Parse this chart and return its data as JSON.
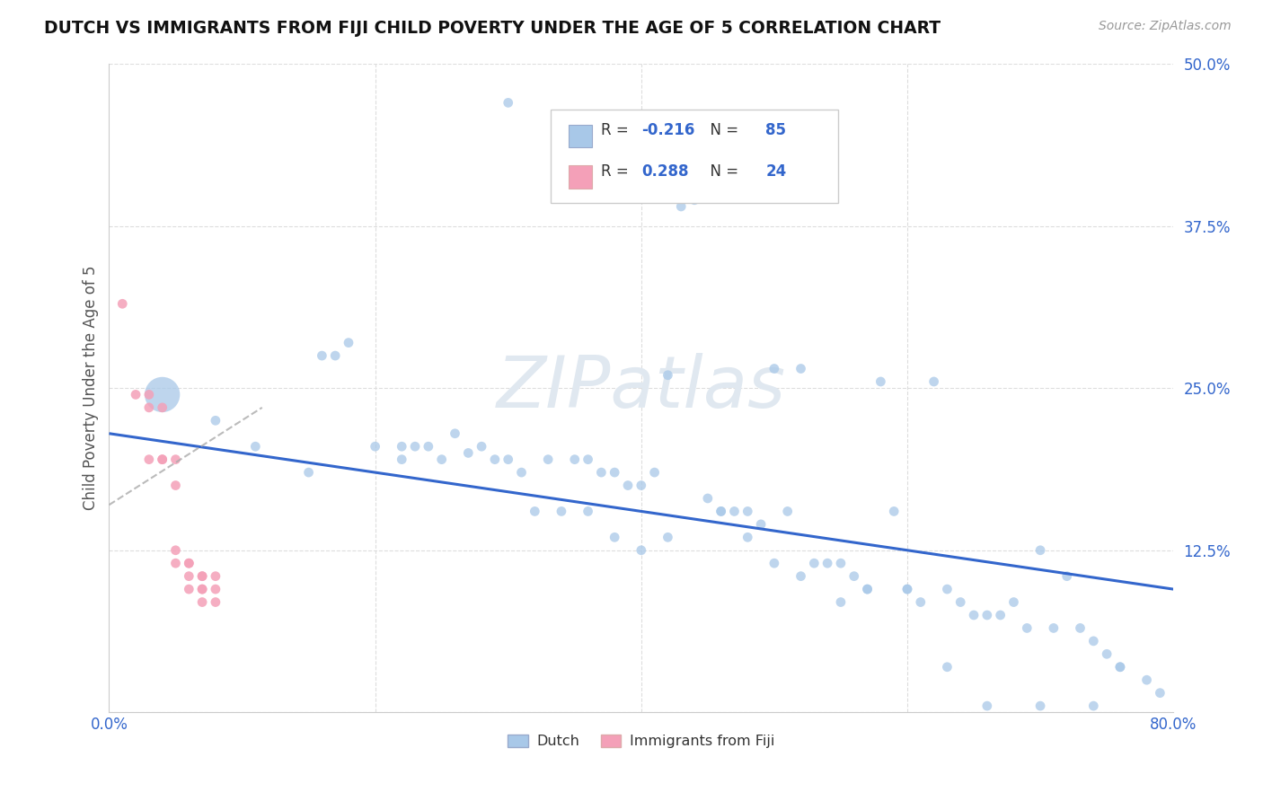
{
  "title": "DUTCH VS IMMIGRANTS FROM FIJI CHILD POVERTY UNDER THE AGE OF 5 CORRELATION CHART",
  "source": "Source: ZipAtlas.com",
  "ylabel": "Child Poverty Under the Age of 5",
  "xlim": [
    0.0,
    0.8
  ],
  "ylim": [
    0.0,
    0.5
  ],
  "xticks": [
    0.0,
    0.2,
    0.4,
    0.6,
    0.8
  ],
  "xticklabels": [
    "0.0%",
    "",
    "",
    "",
    "80.0%"
  ],
  "yticks": [
    0.0,
    0.125,
    0.25,
    0.375,
    0.5
  ],
  "yticklabels": [
    "",
    "12.5%",
    "25.0%",
    "37.5%",
    "50.0%"
  ],
  "dutch_R": -0.216,
  "dutch_N": 85,
  "fiji_R": 0.288,
  "fiji_N": 24,
  "dutch_color": "#a8c8e8",
  "dutch_line_color": "#3366cc",
  "fiji_color": "#f4a0b8",
  "fiji_line_color": "#cc6688",
  "legend_labels": [
    "Dutch",
    "Immigrants from Fiji"
  ],
  "dutch_x": [
    0.04,
    0.11,
    0.16,
    0.17,
    0.2,
    0.22,
    0.22,
    0.24,
    0.26,
    0.27,
    0.28,
    0.29,
    0.3,
    0.31,
    0.33,
    0.35,
    0.36,
    0.37,
    0.38,
    0.39,
    0.4,
    0.41,
    0.42,
    0.43,
    0.44,
    0.45,
    0.46,
    0.47,
    0.48,
    0.49,
    0.3,
    0.43,
    0.44,
    0.5,
    0.51,
    0.52,
    0.53,
    0.54,
    0.55,
    0.56,
    0.57,
    0.58,
    0.59,
    0.6,
    0.61,
    0.62,
    0.63,
    0.64,
    0.65,
    0.66,
    0.67,
    0.68,
    0.69,
    0.7,
    0.71,
    0.72,
    0.73,
    0.74,
    0.75,
    0.76,
    0.15,
    0.18,
    0.23,
    0.25,
    0.32,
    0.34,
    0.36,
    0.38,
    0.4,
    0.42,
    0.46,
    0.48,
    0.5,
    0.52,
    0.55,
    0.57,
    0.6,
    0.63,
    0.66,
    0.7,
    0.74,
    0.76,
    0.78,
    0.79,
    0.08
  ],
  "dutch_y": [
    0.245,
    0.205,
    0.275,
    0.275,
    0.205,
    0.205,
    0.195,
    0.205,
    0.215,
    0.2,
    0.205,
    0.195,
    0.195,
    0.185,
    0.195,
    0.195,
    0.195,
    0.185,
    0.185,
    0.175,
    0.175,
    0.185,
    0.26,
    0.4,
    0.4,
    0.165,
    0.155,
    0.155,
    0.155,
    0.145,
    0.47,
    0.39,
    0.395,
    0.265,
    0.155,
    0.265,
    0.115,
    0.115,
    0.115,
    0.105,
    0.095,
    0.255,
    0.155,
    0.095,
    0.085,
    0.255,
    0.095,
    0.085,
    0.075,
    0.075,
    0.075,
    0.085,
    0.065,
    0.125,
    0.065,
    0.105,
    0.065,
    0.055,
    0.045,
    0.035,
    0.185,
    0.285,
    0.205,
    0.195,
    0.155,
    0.155,
    0.155,
    0.135,
    0.125,
    0.135,
    0.155,
    0.135,
    0.115,
    0.105,
    0.085,
    0.095,
    0.095,
    0.035,
    0.005,
    0.005,
    0.005,
    0.035,
    0.025,
    0.015,
    0.225
  ],
  "dutch_sizes": [
    800,
    60,
    60,
    60,
    60,
    60,
    60,
    60,
    60,
    60,
    60,
    60,
    60,
    60,
    60,
    60,
    60,
    60,
    60,
    60,
    60,
    60,
    60,
    60,
    60,
    60,
    60,
    60,
    60,
    60,
    60,
    60,
    60,
    60,
    60,
    60,
    60,
    60,
    60,
    60,
    60,
    60,
    60,
    60,
    60,
    60,
    60,
    60,
    60,
    60,
    60,
    60,
    60,
    60,
    60,
    60,
    60,
    60,
    60,
    60,
    60,
    60,
    60,
    60,
    60,
    60,
    60,
    60,
    60,
    60,
    60,
    60,
    60,
    60,
    60,
    60,
    60,
    60,
    60,
    60,
    60,
    60,
    60,
    60,
    60
  ],
  "fiji_x": [
    0.01,
    0.02,
    0.03,
    0.03,
    0.03,
    0.04,
    0.04,
    0.04,
    0.05,
    0.05,
    0.05,
    0.05,
    0.06,
    0.06,
    0.06,
    0.06,
    0.07,
    0.07,
    0.07,
    0.07,
    0.07,
    0.08,
    0.08,
    0.08
  ],
  "fiji_y": [
    0.315,
    0.245,
    0.245,
    0.235,
    0.195,
    0.235,
    0.195,
    0.195,
    0.195,
    0.175,
    0.125,
    0.115,
    0.115,
    0.115,
    0.105,
    0.095,
    0.105,
    0.095,
    0.105,
    0.095,
    0.085,
    0.095,
    0.105,
    0.085
  ],
  "fiji_sizes": [
    60,
    60,
    60,
    60,
    60,
    60,
    60,
    60,
    60,
    60,
    60,
    60,
    60,
    60,
    60,
    60,
    60,
    60,
    60,
    60,
    60,
    60,
    60,
    60
  ],
  "dutch_line_x": [
    0.0,
    0.8
  ],
  "dutch_line_y": [
    0.215,
    0.095
  ],
  "fiji_line_x": [
    0.0,
    0.115
  ],
  "fiji_line_y": [
    0.16,
    0.235
  ]
}
